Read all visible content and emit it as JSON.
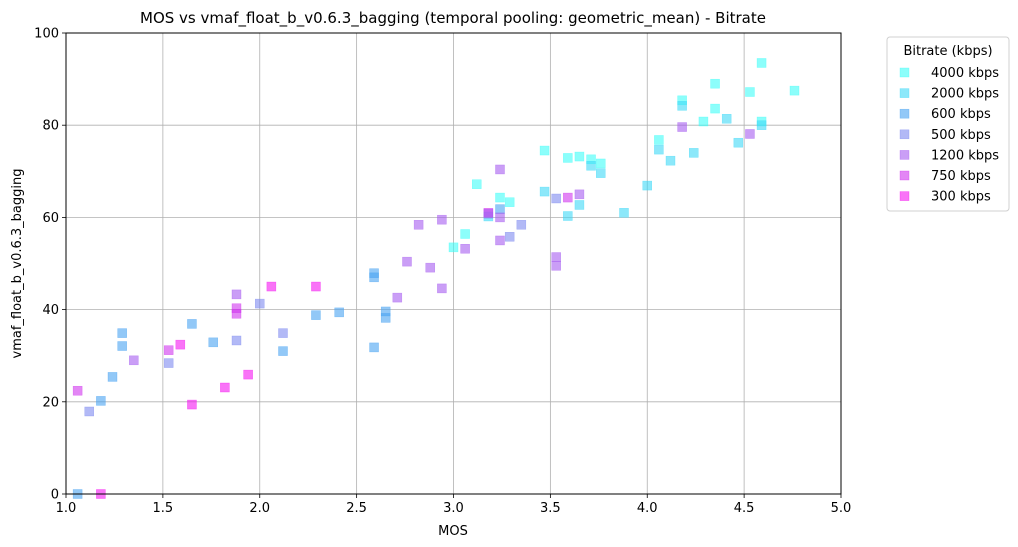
{
  "chart_data": {
    "type": "scatter",
    "title": "MOS vs vmaf_float_b_v0.6.3_bagging (temporal pooling: geometric_mean) - Bitrate",
    "xlabel": "MOS",
    "ylabel": "vmaf_float_b_v0.6.3_bagging",
    "xlim": [
      1.0,
      5.0
    ],
    "ylim": [
      0,
      100
    ],
    "xticks": [
      "1.0",
      "1.5",
      "2.0",
      "2.5",
      "3.0",
      "3.5",
      "4.0",
      "4.5",
      "5.0"
    ],
    "yticks": [
      "0",
      "20",
      "40",
      "60",
      "80",
      "100"
    ],
    "grid": true,
    "marker": "square",
    "legend": {
      "title": "Bitrate (kbps)",
      "placement": "outside-top-right"
    },
    "series": [
      {
        "name": "4000 kbps",
        "color": "#3ffdf8",
        "points": [
          [
            3.12,
            67.2
          ],
          [
            3.47,
            74.5
          ],
          [
            3.59,
            72.9
          ],
          [
            3.65,
            73.2
          ],
          [
            3.71,
            72.6
          ],
          [
            3.76,
            71.7
          ],
          [
            4.06,
            76.8
          ],
          [
            4.18,
            85.4
          ],
          [
            4.29,
            80.8
          ],
          [
            4.35,
            89.0
          ],
          [
            4.35,
            83.6
          ],
          [
            4.53,
            87.2
          ],
          [
            4.59,
            93.5
          ],
          [
            4.59,
            80.8
          ],
          [
            4.76,
            87.5
          ],
          [
            3.24,
            64.3
          ],
          [
            3.29,
            63.3
          ],
          [
            3.06,
            56.4
          ],
          [
            3.0,
            53.5
          ]
        ]
      },
      {
        "name": "2000 kbps",
        "color": "#40d8f6",
        "points": [
          [
            3.47,
            65.6
          ],
          [
            3.65,
            62.7
          ],
          [
            3.71,
            71.2
          ],
          [
            3.76,
            69.6
          ],
          [
            3.88,
            61.0
          ],
          [
            4.0,
            66.9
          ],
          [
            4.06,
            74.7
          ],
          [
            4.12,
            72.3
          ],
          [
            4.18,
            84.2
          ],
          [
            4.24,
            74.0
          ],
          [
            4.41,
            81.4
          ],
          [
            4.47,
            76.2
          ],
          [
            4.59,
            80.0
          ],
          [
            3.18,
            60.2
          ],
          [
            3.59,
            60.3
          ]
        ]
      },
      {
        "name": "600 kbps",
        "color": "#4aa4f2",
        "points": [
          [
            1.06,
            0.0
          ],
          [
            1.18,
            20.2
          ],
          [
            1.24,
            25.4
          ],
          [
            1.29,
            34.9
          ],
          [
            1.29,
            32.1
          ],
          [
            1.65,
            36.9
          ],
          [
            1.76,
            32.9
          ],
          [
            2.12,
            31.0
          ],
          [
            2.29,
            38.8
          ],
          [
            2.41,
            39.4
          ],
          [
            2.59,
            31.8
          ],
          [
            2.59,
            47.9
          ],
          [
            2.59,
            47.0
          ],
          [
            2.65,
            39.6
          ],
          [
            2.65,
            38.2
          ],
          [
            3.24,
            61.8
          ]
        ]
      },
      {
        "name": "500 kbps",
        "color": "#7f8af0",
        "points": [
          [
            1.12,
            17.9
          ],
          [
            1.53,
            28.4
          ],
          [
            1.88,
            33.3
          ],
          [
            2.0,
            41.3
          ],
          [
            2.12,
            34.9
          ],
          [
            3.18,
            60.8
          ],
          [
            3.29,
            55.8
          ],
          [
            3.35,
            58.4
          ],
          [
            3.53,
            64.1
          ]
        ]
      },
      {
        "name": "1200 kbps",
        "color": "#a65df0",
        "points": [
          [
            1.35,
            29.0
          ],
          [
            1.88,
            43.3
          ],
          [
            2.71,
            42.6
          ],
          [
            2.76,
            50.4
          ],
          [
            2.82,
            58.4
          ],
          [
            2.88,
            49.1
          ],
          [
            2.94,
            59.5
          ],
          [
            2.94,
            44.6
          ],
          [
            3.06,
            53.2
          ],
          [
            3.24,
            60.0
          ],
          [
            3.24,
            55.0
          ],
          [
            3.24,
            70.4
          ],
          [
            3.53,
            51.4
          ],
          [
            3.53,
            49.5
          ],
          [
            3.65,
            65.0
          ],
          [
            4.18,
            79.6
          ],
          [
            4.53,
            78.1
          ]
        ]
      },
      {
        "name": "750 kbps",
        "color": "#d136ee",
        "points": [
          [
            1.06,
            22.4
          ],
          [
            1.53,
            31.2
          ],
          [
            1.88,
            40.3
          ],
          [
            1.88,
            39.1
          ],
          [
            3.18,
            61.0
          ],
          [
            3.59,
            64.3
          ]
        ]
      },
      {
        "name": "300 kbps",
        "color": "#f516f2",
        "points": [
          [
            1.18,
            0.0
          ],
          [
            1.59,
            32.4
          ],
          [
            1.65,
            19.4
          ],
          [
            1.82,
            23.1
          ],
          [
            1.94,
            25.9
          ],
          [
            2.06,
            45.0
          ],
          [
            2.29,
            45.0
          ]
        ]
      }
    ]
  }
}
